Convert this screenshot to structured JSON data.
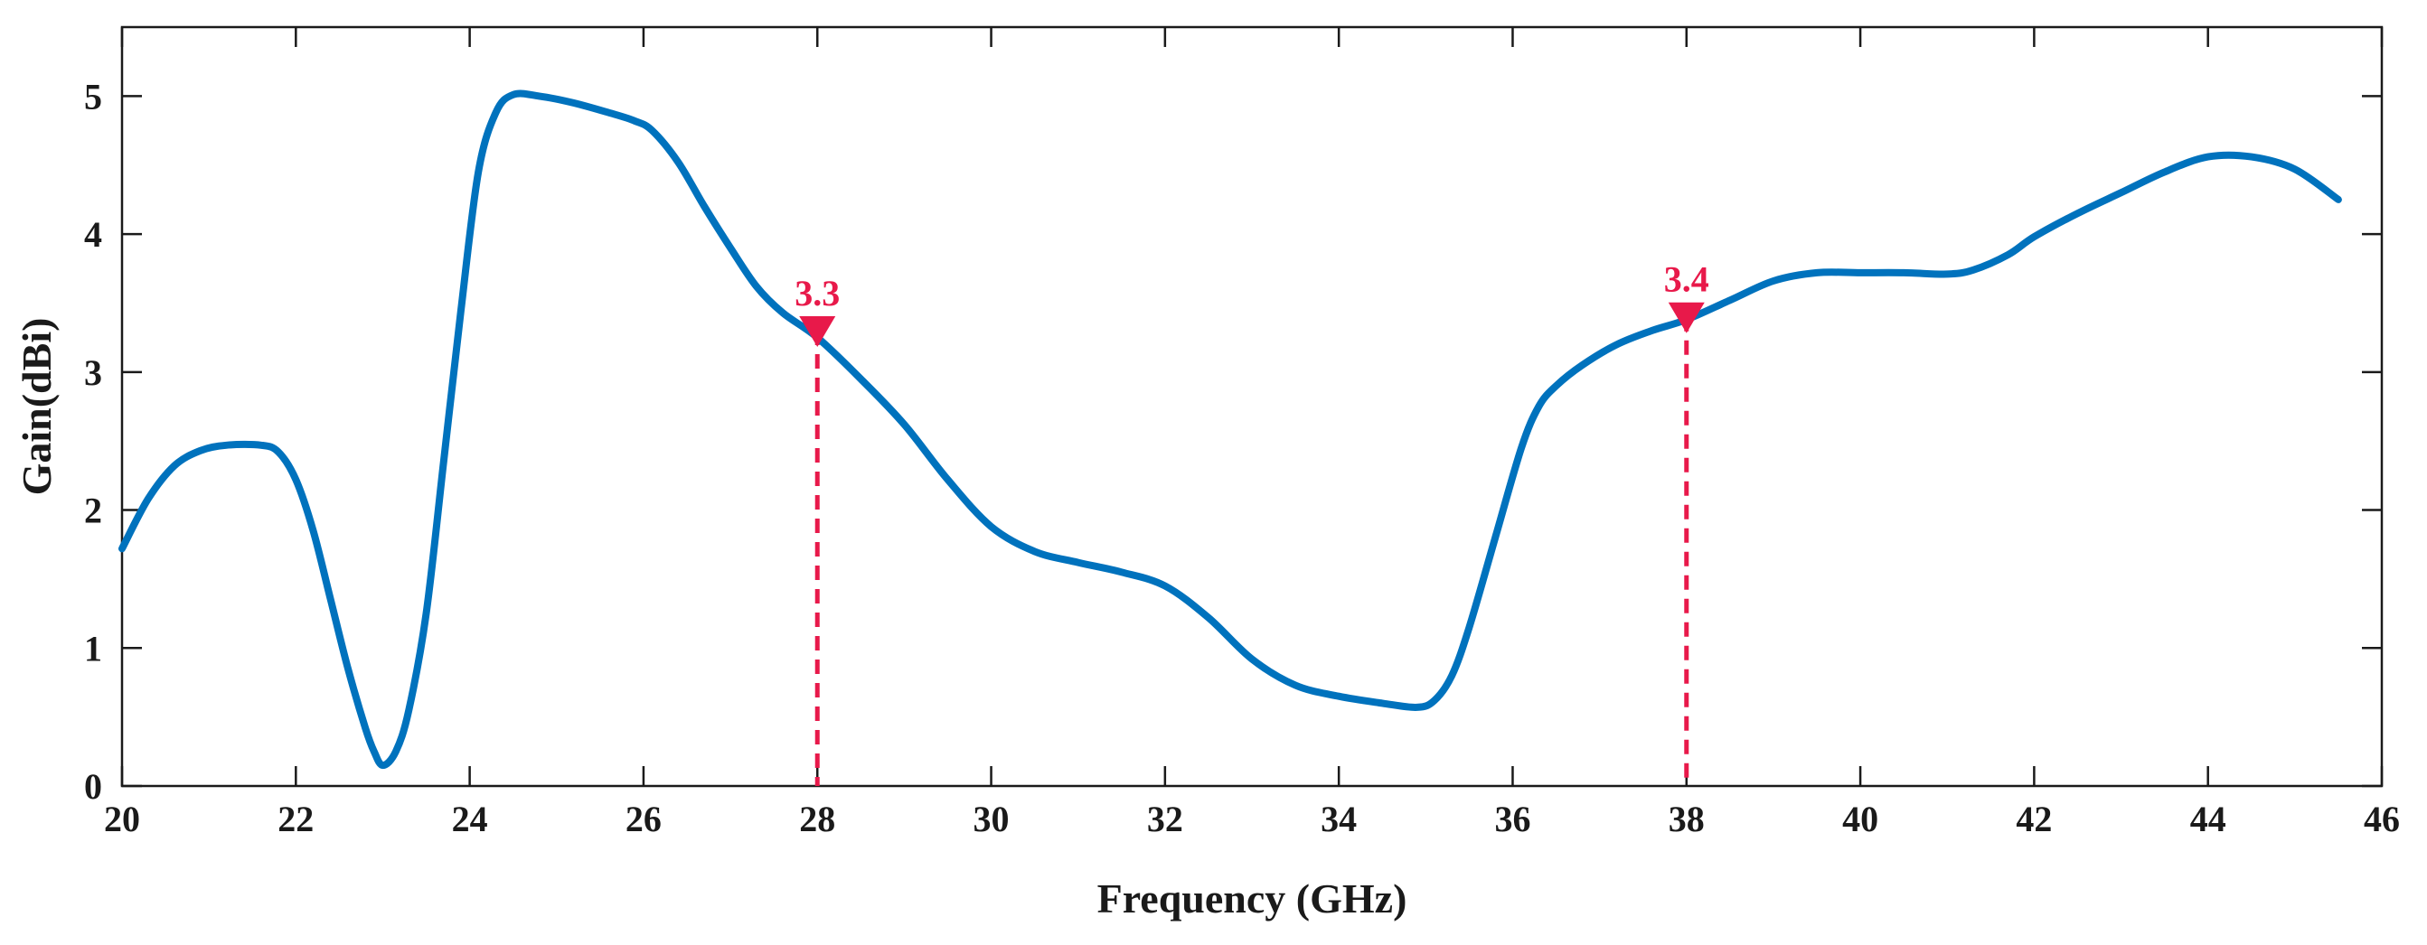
{
  "chart_data": {
    "type": "line",
    "title": "",
    "xlabel": "Frequency (GHz)",
    "ylabel": "Gain(dBi)",
    "xlim": [
      20,
      46
    ],
    "ylim": [
      0,
      5.5
    ],
    "xticks": [
      20,
      22,
      24,
      26,
      28,
      30,
      32,
      34,
      36,
      38,
      40,
      42,
      44,
      46
    ],
    "yticks": [
      0,
      1,
      2,
      3,
      4,
      5
    ],
    "grid": false,
    "series": [
      {
        "name": "Gain",
        "color": "#0072bd",
        "x": [
          20,
          20.3,
          20.6,
          20.9,
          21.2,
          21.6,
          21.8,
          22.0,
          22.2,
          22.4,
          22.6,
          22.8,
          22.9,
          23.0,
          23.15,
          23.3,
          23.5,
          23.7,
          23.9,
          24.1,
          24.3,
          24.5,
          24.8,
          25.2,
          25.6,
          25.9,
          26.1,
          26.4,
          26.7,
          27.0,
          27.3,
          27.6,
          28.0,
          28.5,
          29.0,
          29.5,
          30.0,
          30.5,
          31.0,
          31.5,
          32.0,
          32.5,
          33.0,
          33.5,
          34.0,
          34.5,
          34.9,
          35.1,
          35.3,
          35.5,
          35.8,
          36.1,
          36.3,
          36.5,
          36.8,
          37.2,
          37.6,
          38.0,
          38.5,
          39.0,
          39.5,
          40.0,
          40.5,
          41.0,
          41.3,
          41.7,
          42.0,
          42.5,
          43.0,
          43.5,
          44.0,
          44.5,
          45.0,
          45.5
        ],
        "y": [
          1.72,
          2.08,
          2.32,
          2.43,
          2.47,
          2.47,
          2.42,
          2.22,
          1.85,
          1.35,
          0.85,
          0.42,
          0.25,
          0.15,
          0.25,
          0.55,
          1.25,
          2.35,
          3.45,
          4.45,
          4.88,
          5.01,
          5.0,
          4.95,
          4.88,
          4.82,
          4.75,
          4.52,
          4.2,
          3.9,
          3.62,
          3.43,
          3.25,
          2.95,
          2.62,
          2.22,
          1.88,
          1.7,
          1.62,
          1.55,
          1.45,
          1.22,
          0.92,
          0.73,
          0.65,
          0.6,
          0.57,
          0.62,
          0.8,
          1.15,
          1.8,
          2.45,
          2.75,
          2.9,
          3.05,
          3.2,
          3.3,
          3.38,
          3.52,
          3.66,
          3.72,
          3.72,
          3.72,
          3.71,
          3.74,
          3.85,
          3.98,
          4.15,
          4.3,
          4.45,
          4.56,
          4.56,
          4.47,
          4.25
        ]
      }
    ],
    "markers": [
      {
        "x": 28,
        "y": 3.3,
        "label": "3.3",
        "color": "#e8194a"
      },
      {
        "x": 38,
        "y": 3.4,
        "label": "3.4",
        "color": "#e8194a"
      }
    ]
  }
}
